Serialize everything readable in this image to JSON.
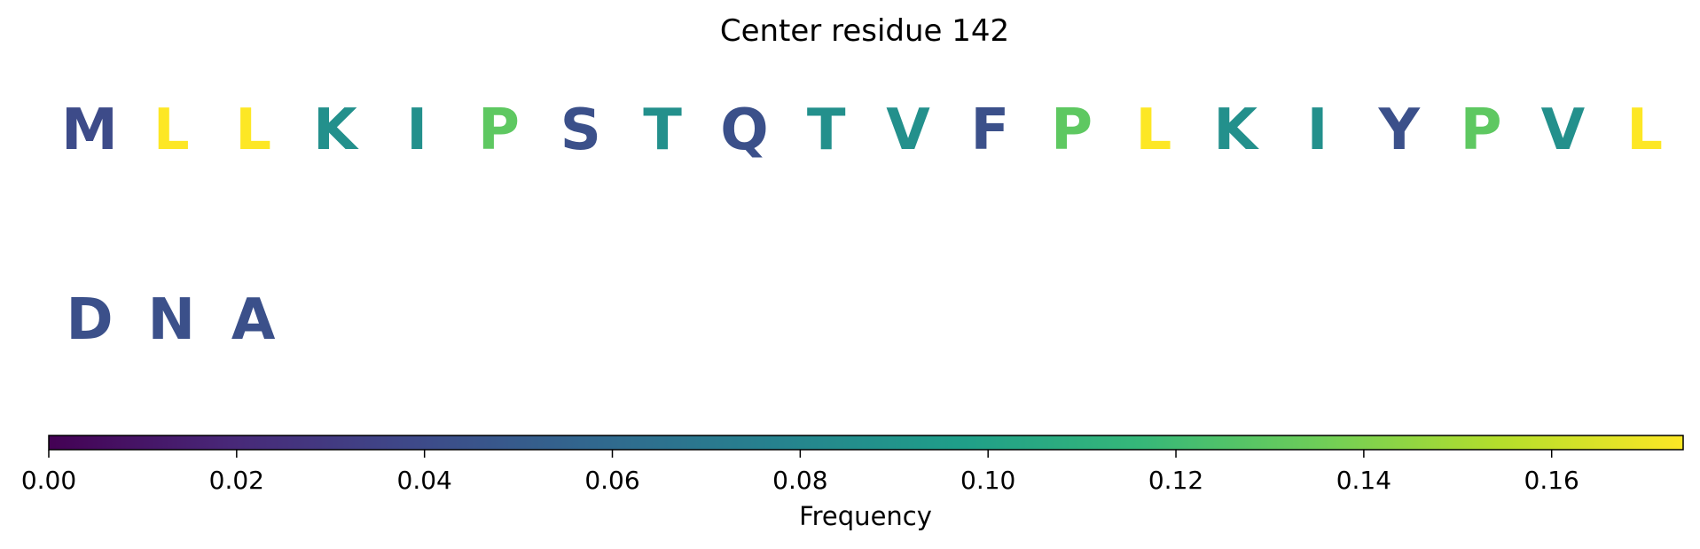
{
  "chart_data": {
    "type": "heatmap",
    "title": "Center residue 142",
    "cells": [
      {
        "letter": "M",
        "row": 0,
        "col": 0,
        "freq": 0.04
      },
      {
        "letter": "L",
        "row": 0,
        "col": 1,
        "freq": 0.174
      },
      {
        "letter": "L",
        "row": 0,
        "col": 2,
        "freq": 0.174
      },
      {
        "letter": "K",
        "row": 0,
        "col": 3,
        "freq": 0.087
      },
      {
        "letter": "I",
        "row": 0,
        "col": 4,
        "freq": 0.087
      },
      {
        "letter": "P",
        "row": 0,
        "col": 5,
        "freq": 0.13
      },
      {
        "letter": "S",
        "row": 0,
        "col": 6,
        "freq": 0.043
      },
      {
        "letter": "T",
        "row": 0,
        "col": 7,
        "freq": 0.087
      },
      {
        "letter": "Q",
        "row": 0,
        "col": 8,
        "freq": 0.043
      },
      {
        "letter": "T",
        "row": 0,
        "col": 9,
        "freq": 0.087
      },
      {
        "letter": "V",
        "row": 0,
        "col": 10,
        "freq": 0.087
      },
      {
        "letter": "F",
        "row": 0,
        "col": 11,
        "freq": 0.043
      },
      {
        "letter": "P",
        "row": 0,
        "col": 12,
        "freq": 0.13
      },
      {
        "letter": "L",
        "row": 0,
        "col": 13,
        "freq": 0.174
      },
      {
        "letter": "K",
        "row": 0,
        "col": 14,
        "freq": 0.087
      },
      {
        "letter": "I",
        "row": 0,
        "col": 15,
        "freq": 0.087
      },
      {
        "letter": "Y",
        "row": 0,
        "col": 16,
        "freq": 0.043
      },
      {
        "letter": "P",
        "row": 0,
        "col": 17,
        "freq": 0.13
      },
      {
        "letter": "V",
        "row": 0,
        "col": 18,
        "freq": 0.087
      },
      {
        "letter": "L",
        "row": 0,
        "col": 19,
        "freq": 0.174
      },
      {
        "letter": "D",
        "row": 1,
        "col": 0,
        "freq": 0.043
      },
      {
        "letter": "N",
        "row": 1,
        "col": 1,
        "freq": 0.043
      },
      {
        "letter": "A",
        "row": 1,
        "col": 2,
        "freq": 0.043
      }
    ],
    "colorbar": {
      "label": "Frequency",
      "range": [
        0,
        0.174
      ],
      "ticks": [
        0.0,
        0.02,
        0.04,
        0.06,
        0.08,
        0.1,
        0.12,
        0.14,
        0.16
      ],
      "tick_labels": [
        "0.00",
        "0.02",
        "0.04",
        "0.06",
        "0.08",
        "0.10",
        "0.12",
        "0.14",
        "0.16"
      ],
      "colormap": "viridis",
      "colormap_stops": [
        "#440154",
        "#482878",
        "#3e4989",
        "#31688e",
        "#26828e",
        "#1f9e89",
        "#35b779",
        "#6ece58",
        "#b5de2b",
        "#fde725"
      ]
    }
  }
}
